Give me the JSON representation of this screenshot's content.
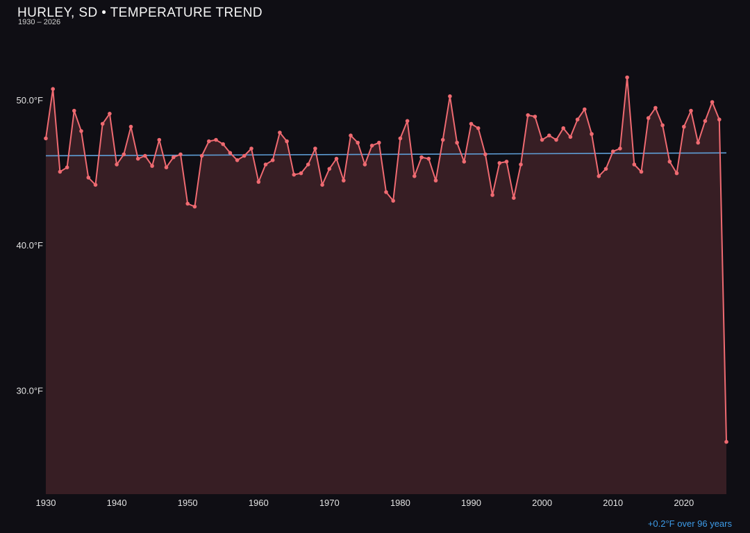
{
  "header": {
    "title": "HURLEY, SD • TEMPERATURE TREND",
    "subtitle": "1930 – 2026"
  },
  "footer": {
    "trend_label": "+0.2°F over 96 years"
  },
  "colors": {
    "background": "#0f0e14",
    "line": "#ef6a71",
    "fill": "rgba(239,106,113,0.18)",
    "trend": "#5f9fd8",
    "tick_text": "#e2e2e2",
    "accent_blue": "#3d9be8"
  },
  "chart_data": {
    "type": "line",
    "title": "HURLEY, SD • TEMPERATURE TREND",
    "subtitle": "1930 – 2026",
    "xlabel": "",
    "ylabel": "",
    "grid": false,
    "legend": "none",
    "xlim": [
      1930,
      2026
    ],
    "ylim": [
      22.9,
      54.3
    ],
    "x_ticks": [
      1930,
      1940,
      1950,
      1960,
      1970,
      1980,
      1990,
      2000,
      2010,
      2020
    ],
    "y_ticks": [
      {
        "value": 30,
        "label": "30.0°F"
      },
      {
        "value": 40,
        "label": "40.0°F"
      },
      {
        "value": 50,
        "label": "50.0°F"
      }
    ],
    "x": [
      1930,
      1931,
      1932,
      1933,
      1934,
      1935,
      1936,
      1937,
      1938,
      1939,
      1940,
      1941,
      1942,
      1943,
      1944,
      1945,
      1946,
      1947,
      1948,
      1949,
      1950,
      1951,
      1952,
      1953,
      1954,
      1955,
      1956,
      1957,
      1958,
      1959,
      1960,
      1961,
      1962,
      1963,
      1964,
      1965,
      1966,
      1967,
      1968,
      1969,
      1970,
      1971,
      1972,
      1973,
      1974,
      1975,
      1976,
      1977,
      1978,
      1979,
      1980,
      1981,
      1982,
      1983,
      1984,
      1985,
      1986,
      1987,
      1988,
      1989,
      1990,
      1991,
      1992,
      1993,
      1994,
      1995,
      1996,
      1997,
      1998,
      1999,
      2000,
      2001,
      2002,
      2003,
      2004,
      2005,
      2006,
      2007,
      2008,
      2009,
      2010,
      2011,
      2012,
      2013,
      2014,
      2015,
      2016,
      2017,
      2018,
      2019,
      2020,
      2021,
      2022,
      2023,
      2024,
      2025,
      2026
    ],
    "values": [
      47.4,
      50.8,
      45.1,
      45.4,
      49.3,
      47.9,
      44.7,
      44.2,
      48.4,
      49.1,
      45.6,
      46.3,
      48.2,
      46.0,
      46.2,
      45.5,
      47.3,
      45.4,
      46.1,
      46.3,
      42.9,
      42.7,
      46.2,
      47.2,
      47.3,
      47.0,
      46.4,
      45.9,
      46.2,
      46.7,
      44.4,
      45.6,
      45.9,
      47.8,
      47.2,
      44.9,
      45.0,
      45.6,
      46.7,
      44.2,
      45.3,
      46.0,
      44.5,
      47.6,
      47.1,
      45.6,
      46.9,
      47.1,
      43.7,
      43.1,
      47.4,
      48.6,
      44.8,
      46.1,
      46.0,
      44.5,
      47.3,
      50.3,
      47.1,
      45.8,
      48.4,
      48.1,
      46.3,
      43.5,
      45.7,
      45.8,
      43.3,
      45.6,
      49.0,
      48.9,
      47.3,
      47.6,
      47.3,
      48.1,
      47.5,
      48.7,
      49.4,
      47.7,
      44.8,
      45.3,
      46.5,
      46.7,
      51.6,
      45.6,
      45.1,
      48.8,
      49.5,
      48.3,
      45.8,
      45.0,
      48.2,
      49.3,
      47.1,
      48.6,
      49.9,
      48.7,
      26.5
    ],
    "trend": {
      "start_year": 1930,
      "end_year": 2026,
      "start_value": 46.2,
      "end_value": 46.4,
      "delta_label": "+0.2°F over 96 years"
    }
  }
}
